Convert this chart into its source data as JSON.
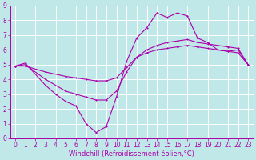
{
  "bg_color": "#c0e8e8",
  "line_color": "#aa00aa",
  "grid_color": "#ffffff",
  "xlabel": "Windchill (Refroidissement éolien,°C)",
  "xlabel_fontsize": 6.0,
  "tick_fontsize": 5.5,
  "xlim": [
    -0.5,
    23.5
  ],
  "ylim": [
    0,
    9
  ],
  "xticks": [
    0,
    1,
    2,
    3,
    4,
    5,
    6,
    7,
    8,
    9,
    10,
    11,
    12,
    13,
    14,
    15,
    16,
    17,
    18,
    19,
    20,
    21,
    22,
    23
  ],
  "yticks": [
    0,
    1,
    2,
    3,
    4,
    5,
    6,
    7,
    8,
    9
  ],
  "line1_x": [
    0,
    1,
    3,
    4,
    5,
    6,
    7,
    8,
    9,
    10,
    11,
    12,
    13,
    14,
    15,
    16,
    17,
    18,
    19,
    20,
    21,
    22,
    23
  ],
  "line1_y": [
    4.9,
    5.1,
    3.6,
    3.0,
    2.5,
    2.2,
    1.0,
    0.4,
    0.8,
    2.8,
    5.2,
    6.8,
    7.5,
    8.5,
    8.2,
    8.5,
    8.3,
    6.8,
    6.5,
    6.0,
    5.9,
    6.0,
    5.0
  ],
  "line2_x": [
    0,
    1,
    3,
    5,
    6,
    7,
    8,
    9,
    10,
    11,
    12,
    13,
    14,
    15,
    16,
    17,
    18,
    19,
    20,
    21,
    22,
    23
  ],
  "line2_y": [
    4.9,
    5.0,
    4.0,
    3.2,
    3.0,
    2.8,
    2.6,
    2.6,
    3.2,
    4.5,
    5.5,
    6.0,
    6.3,
    6.5,
    6.6,
    6.7,
    6.5,
    6.4,
    6.3,
    6.2,
    6.1,
    5.0
  ],
  "line3_x": [
    0,
    1,
    3,
    5,
    6,
    7,
    8,
    9,
    10,
    11,
    12,
    13,
    14,
    15,
    16,
    17,
    18,
    19,
    20,
    21,
    22,
    23
  ],
  "line3_y": [
    4.9,
    4.9,
    4.5,
    4.2,
    4.1,
    4.0,
    3.9,
    3.9,
    4.1,
    4.8,
    5.5,
    5.8,
    6.0,
    6.1,
    6.2,
    6.3,
    6.2,
    6.1,
    6.0,
    5.9,
    5.8,
    5.0
  ]
}
